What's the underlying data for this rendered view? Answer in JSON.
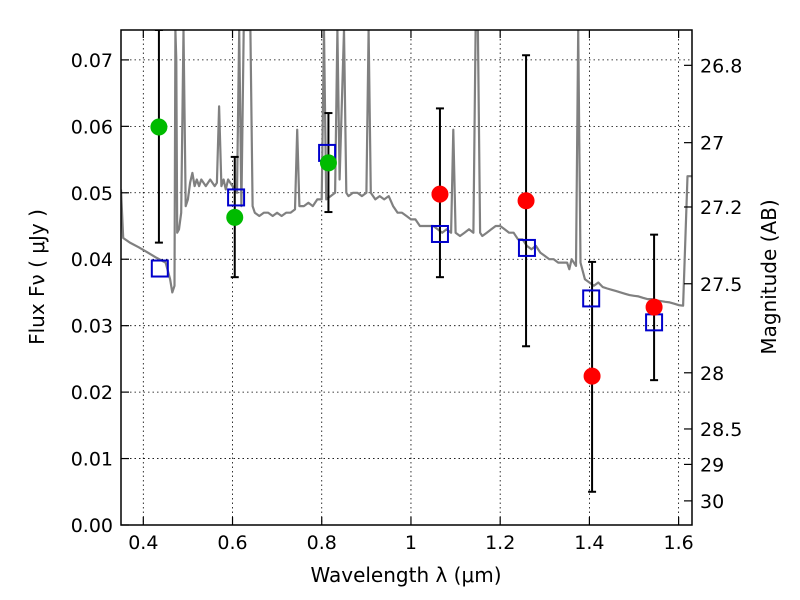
{
  "chart_data": {
    "type": "scatter",
    "xlabel": "Wavelength  λ (μm)",
    "ylabel": "Flux  Fν  ( μJy )",
    "y2label": "Magnitude (AB)",
    "xlim": [
      0.35,
      1.63
    ],
    "ylim": [
      0.0,
      0.0745
    ],
    "grid": true,
    "x_ticks": [
      {
        "value": 0.4,
        "label": "0.4"
      },
      {
        "value": 0.6,
        "label": "0.6"
      },
      {
        "value": 0.8,
        "label": "0.8"
      },
      {
        "value": 1.0,
        "label": "1"
      },
      {
        "value": 1.2,
        "label": "1.2"
      },
      {
        "value": 1.4,
        "label": "1.4"
      },
      {
        "value": 1.6,
        "label": "1.6"
      }
    ],
    "y_ticks": [
      {
        "value": 0.0,
        "label": "0.00"
      },
      {
        "value": 0.01,
        "label": "0.01"
      },
      {
        "value": 0.02,
        "label": "0.02"
      },
      {
        "value": 0.03,
        "label": "0.03"
      },
      {
        "value": 0.04,
        "label": "0.04"
      },
      {
        "value": 0.05,
        "label": "0.05"
      },
      {
        "value": 0.06,
        "label": "0.06"
      },
      {
        "value": 0.07,
        "label": "0.07"
      }
    ],
    "y2_ticks": [
      {
        "value": 26.8,
        "label": "26.8"
      },
      {
        "value": 27.0,
        "label": "27"
      },
      {
        "value": 27.2,
        "label": "27.2"
      },
      {
        "value": 27.5,
        "label": "27.5"
      },
      {
        "value": 28.0,
        "label": "28"
      },
      {
        "value": 28.5,
        "label": "28.5"
      },
      {
        "value": 29.0,
        "label": "29"
      },
      {
        "value": 30.0,
        "label": "30"
      }
    ],
    "series": [
      {
        "kind": "line",
        "color": "#808080",
        "points": [
          [
            0.35,
            0.0505
          ],
          [
            0.355,
            0.0432
          ],
          [
            0.37,
            0.0425
          ],
          [
            0.39,
            0.0418
          ],
          [
            0.41,
            0.041
          ],
          [
            0.43,
            0.0402
          ],
          [
            0.45,
            0.0395
          ],
          [
            0.46,
            0.037
          ],
          [
            0.465,
            0.035
          ],
          [
            0.47,
            0.036
          ],
          [
            0.472,
            0.0745
          ],
          [
            0.474,
            0.07
          ],
          [
            0.476,
            0.044
          ],
          [
            0.48,
            0.0445
          ],
          [
            0.485,
            0.047
          ],
          [
            0.49,
            0.0745
          ],
          [
            0.495,
            0.048
          ],
          [
            0.5,
            0.049
          ],
          [
            0.505,
            0.0515
          ],
          [
            0.51,
            0.053
          ],
          [
            0.515,
            0.051
          ],
          [
            0.52,
            0.052
          ],
          [
            0.525,
            0.051
          ],
          [
            0.53,
            0.052
          ],
          [
            0.54,
            0.051
          ],
          [
            0.55,
            0.052
          ],
          [
            0.56,
            0.051
          ],
          [
            0.565,
            0.0515
          ],
          [
            0.57,
            0.063
          ],
          [
            0.575,
            0.051
          ],
          [
            0.58,
            0.052
          ],
          [
            0.585,
            0.0505
          ],
          [
            0.59,
            0.052
          ],
          [
            0.6,
            0.051
          ],
          [
            0.605,
            0.0505
          ],
          [
            0.61,
            0.05
          ],
          [
            0.615,
            0.0745
          ],
          [
            0.62,
            0.048
          ],
          [
            0.625,
            0.0745
          ],
          [
            0.63,
            0.0745
          ],
          [
            0.64,
            0.0745
          ],
          [
            0.645,
            0.048
          ],
          [
            0.65,
            0.047
          ],
          [
            0.66,
            0.0465
          ],
          [
            0.67,
            0.047
          ],
          [
            0.68,
            0.047
          ],
          [
            0.69,
            0.0465
          ],
          [
            0.7,
            0.047
          ],
          [
            0.71,
            0.0465
          ],
          [
            0.72,
            0.047
          ],
          [
            0.73,
            0.047
          ],
          [
            0.74,
            0.0475
          ],
          [
            0.745,
            0.0595
          ],
          [
            0.75,
            0.048
          ],
          [
            0.76,
            0.048
          ],
          [
            0.77,
            0.0485
          ],
          [
            0.78,
            0.048
          ],
          [
            0.79,
            0.049
          ],
          [
            0.8,
            0.049
          ],
          [
            0.805,
            0.0745
          ],
          [
            0.81,
            0.049
          ],
          [
            0.82,
            0.0495
          ],
          [
            0.83,
            0.05
          ],
          [
            0.835,
            0.0745
          ],
          [
            0.84,
            0.052
          ],
          [
            0.85,
            0.0745
          ],
          [
            0.855,
            0.05
          ],
          [
            0.86,
            0.0495
          ],
          [
            0.87,
            0.05
          ],
          [
            0.88,
            0.05
          ],
          [
            0.89,
            0.0495
          ],
          [
            0.9,
            0.05
          ],
          [
            0.905,
            0.0745
          ],
          [
            0.91,
            0.05
          ],
          [
            0.92,
            0.049
          ],
          [
            0.93,
            0.0495
          ],
          [
            0.94,
            0.049
          ],
          [
            0.95,
            0.0495
          ],
          [
            0.96,
            0.048
          ],
          [
            0.97,
            0.047
          ],
          [
            0.98,
            0.047
          ],
          [
            0.99,
            0.0465
          ],
          [
            1.0,
            0.046
          ],
          [
            1.01,
            0.046
          ],
          [
            1.02,
            0.045
          ],
          [
            1.03,
            0.045
          ],
          [
            1.04,
            0.045
          ],
          [
            1.05,
            0.045
          ],
          [
            1.06,
            0.0445
          ],
          [
            1.07,
            0.044
          ],
          [
            1.08,
            0.0445
          ],
          [
            1.09,
            0.044
          ],
          [
            1.095,
            0.0595
          ],
          [
            1.1,
            0.044
          ],
          [
            1.11,
            0.0435
          ],
          [
            1.12,
            0.044
          ],
          [
            1.13,
            0.0445
          ],
          [
            1.14,
            0.044
          ],
          [
            1.145,
            0.0745
          ],
          [
            1.15,
            0.0745
          ],
          [
            1.155,
            0.044
          ],
          [
            1.16,
            0.0435
          ],
          [
            1.17,
            0.044
          ],
          [
            1.18,
            0.0445
          ],
          [
            1.19,
            0.045
          ],
          [
            1.2,
            0.045
          ],
          [
            1.21,
            0.0445
          ],
          [
            1.22,
            0.044
          ],
          [
            1.23,
            0.044
          ],
          [
            1.24,
            0.043
          ],
          [
            1.25,
            0.043
          ],
          [
            1.26,
            0.042
          ],
          [
            1.27,
            0.0415
          ],
          [
            1.28,
            0.042
          ],
          [
            1.29,
            0.041
          ],
          [
            1.3,
            0.0405
          ],
          [
            1.31,
            0.04
          ],
          [
            1.32,
            0.04
          ],
          [
            1.33,
            0.0395
          ],
          [
            1.34,
            0.0395
          ],
          [
            1.35,
            0.0395
          ],
          [
            1.355,
            0.0385
          ],
          [
            1.36,
            0.04
          ],
          [
            1.37,
            0.039
          ],
          [
            1.375,
            0.0745
          ],
          [
            1.38,
            0.0395
          ],
          [
            1.39,
            0.037
          ],
          [
            1.4,
            0.0365
          ],
          [
            1.41,
            0.036
          ],
          [
            1.42,
            0.0365
          ],
          [
            1.43,
            0.0358
          ],
          [
            1.44,
            0.0356
          ],
          [
            1.45,
            0.0354
          ],
          [
            1.46,
            0.0352
          ],
          [
            1.47,
            0.035
          ],
          [
            1.48,
            0.0348
          ],
          [
            1.49,
            0.0346
          ],
          [
            1.5,
            0.0345
          ],
          [
            1.51,
            0.0344
          ],
          [
            1.52,
            0.0342
          ],
          [
            1.53,
            0.034
          ],
          [
            1.54,
            0.034
          ],
          [
            1.55,
            0.0338
          ],
          [
            1.56,
            0.0337
          ],
          [
            1.57,
            0.0336
          ],
          [
            1.58,
            0.0335
          ],
          [
            1.59,
            0.0333
          ],
          [
            1.6,
            0.0331
          ],
          [
            1.61,
            0.033
          ],
          [
            1.62,
            0.0525
          ],
          [
            1.63,
            0.0525
          ]
        ]
      },
      {
        "kind": "observed",
        "color_green": "#00bb00",
        "color_red": "#ff0000",
        "points": [
          {
            "x": 0.435,
            "y": 0.0599,
            "err_low": 0.0425,
            "err_high": 0.0745,
            "color": "green"
          },
          {
            "x": 0.605,
            "y": 0.0463,
            "err_low": 0.0373,
            "err_high": 0.0554,
            "color": "green"
          },
          {
            "x": 0.815,
            "y": 0.0545,
            "err_low": 0.0471,
            "err_high": 0.062,
            "color": "green"
          },
          {
            "x": 1.065,
            "y": 0.0498,
            "err_low": 0.0373,
            "err_high": 0.0627,
            "color": "red"
          },
          {
            "x": 1.258,
            "y": 0.0488,
            "err_low": 0.0269,
            "err_high": 0.0707,
            "color": "red"
          },
          {
            "x": 1.406,
            "y": 0.0224,
            "err_low": 0.005,
            "err_high": 0.0396,
            "color": "red"
          },
          {
            "x": 1.545,
            "y": 0.0328,
            "err_low": 0.0218,
            "err_high": 0.0437,
            "color": "red"
          }
        ]
      },
      {
        "kind": "model",
        "color": "#0000cc",
        "points": [
          {
            "x": 0.437,
            "y": 0.0386
          },
          {
            "x": 0.608,
            "y": 0.0493
          },
          {
            "x": 0.812,
            "y": 0.056
          },
          {
            "x": 1.065,
            "y": 0.0438
          },
          {
            "x": 1.26,
            "y": 0.0417
          },
          {
            "x": 1.404,
            "y": 0.0341
          },
          {
            "x": 1.545,
            "y": 0.0305
          }
        ]
      }
    ]
  }
}
